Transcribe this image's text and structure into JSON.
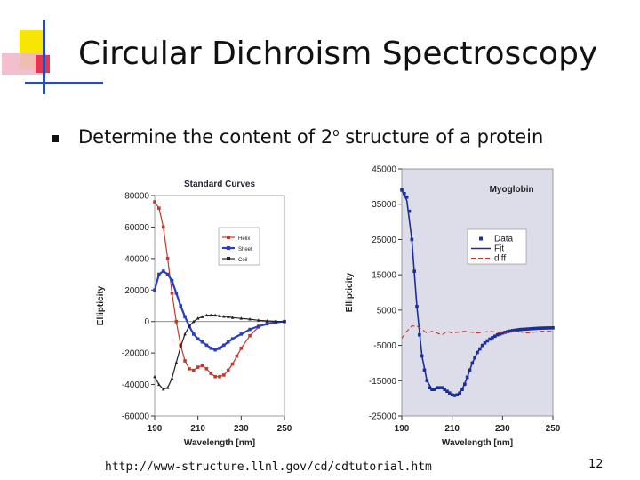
{
  "slide": {
    "title": "Circular Dichroism Spectroscopy",
    "bullet": "Determine the content of 2",
    "bullet_sup": "o",
    "bullet_rest": " structure of a protein",
    "url": "http://www-structure.llnl.gov/cd/cdtutorial.htm",
    "page_number": "12"
  },
  "chart_data": [
    {
      "type": "line",
      "title": "Standard Curves",
      "xlabel": "Wavelength [nm]",
      "ylabel": "Ellipticity",
      "xlim": [
        190,
        250
      ],
      "ylim": [
        -60000,
        80000
      ],
      "xticks": [
        "190",
        "210",
        "230",
        "250"
      ],
      "yticks": [
        "80000",
        "60000",
        "40000",
        "20000",
        "0",
        "-20000",
        "-40000",
        "-60000"
      ],
      "legend_position": "upper-right",
      "colors": {
        "Helix": "#c0392b",
        "Sheet": "#2a3fbf",
        "Coil": "#222222"
      },
      "series": [
        {
          "name": "Helix",
          "x": [
            190,
            192,
            194,
            196,
            198,
            200,
            202,
            204,
            206,
            208,
            210,
            212,
            214,
            216,
            218,
            220,
            222,
            224,
            226,
            228,
            230,
            234,
            238,
            242,
            246,
            250
          ],
          "y": [
            76000,
            72000,
            60000,
            40000,
            18000,
            0,
            -15000,
            -25000,
            -30000,
            -31000,
            -29000,
            -28000,
            -30000,
            -33000,
            -35000,
            -35000,
            -34000,
            -31000,
            -27000,
            -22000,
            -17000,
            -9000,
            -3500,
            -1000,
            -300,
            0
          ]
        },
        {
          "name": "Sheet",
          "x": [
            190,
            192,
            194,
            196,
            198,
            200,
            202,
            204,
            206,
            208,
            210,
            212,
            214,
            216,
            218,
            220,
            222,
            224,
            226,
            230,
            234,
            238,
            242,
            246,
            250
          ],
          "y": [
            20000,
            30000,
            32000,
            30000,
            26000,
            18000,
            10000,
            3000,
            -3000,
            -8000,
            -11000,
            -13000,
            -15000,
            -17000,
            -18000,
            -17000,
            -15000,
            -13000,
            -11000,
            -8000,
            -5000,
            -3000,
            -1500,
            -500,
            0
          ]
        },
        {
          "name": "Coil",
          "x": [
            190,
            192,
            194,
            196,
            198,
            200,
            202,
            204,
            206,
            208,
            210,
            212,
            214,
            216,
            218,
            220,
            222,
            224,
            226,
            230,
            234,
            238,
            242,
            246,
            250
          ],
          "y": [
            -35000,
            -40000,
            -43000,
            -42000,
            -36000,
            -26000,
            -16000,
            -8000,
            -3000,
            0,
            2000,
            3000,
            4000,
            4000,
            4000,
            3500,
            3200,
            3000,
            2500,
            2000,
            1500,
            800,
            400,
            100,
            0
          ]
        }
      ]
    },
    {
      "type": "line",
      "title": "Myoglobin",
      "xlabel": "Wavelength [nm]",
      "ylabel": "Ellipticity",
      "xlim": [
        190,
        250
      ],
      "ylim": [
        -25000,
        45000
      ],
      "xticks": [
        "190",
        "210",
        "230",
        "250"
      ],
      "yticks": [
        "45000",
        "35000",
        "25000",
        "15000",
        "5000",
        "-5000",
        "-15000",
        "-25000"
      ],
      "legend_position": "upper-right",
      "colors": {
        "Data": "#1a2f99",
        "Fit": "#1a2f99",
        "diff": "#c0392b"
      },
      "series": [
        {
          "name": "Data",
          "x": [
            190,
            191,
            192,
            193,
            194,
            195,
            196,
            197,
            198,
            199,
            200,
            201,
            202,
            203,
            204,
            205,
            206,
            207,
            208,
            209,
            210,
            211,
            212,
            213,
            214,
            215,
            216,
            217,
            218,
            219,
            220,
            221,
            222,
            223,
            224,
            225,
            226,
            227,
            228,
            229,
            230,
            231,
            232,
            233,
            234,
            235,
            236,
            237,
            238,
            239,
            240,
            241,
            242,
            243,
            244,
            245,
            246,
            247,
            248,
            249,
            250
          ],
          "y": [
            39000,
            38000,
            37000,
            33000,
            25000,
            16000,
            6000,
            -2000,
            -8000,
            -12000,
            -15000,
            -17000,
            -17500,
            -17500,
            -17000,
            -17000,
            -17000,
            -17500,
            -18000,
            -18500,
            -19000,
            -19200,
            -19000,
            -18500,
            -17500,
            -16000,
            -14000,
            -12000,
            -10000,
            -8500,
            -7000,
            -6000,
            -5000,
            -4300,
            -3700,
            -3200,
            -2800,
            -2400,
            -2000,
            -1800,
            -1500,
            -1300,
            -1100,
            -950,
            -800,
            -700,
            -600,
            -500,
            -450,
            -400,
            -350,
            -300,
            -250,
            -200,
            -150,
            -120,
            -100,
            -80,
            -60,
            -40,
            -20
          ]
        },
        {
          "name": "Fit",
          "x": [
            190,
            192,
            194,
            196,
            198,
            200,
            202,
            204,
            206,
            208,
            210,
            212,
            214,
            216,
            218,
            220,
            222,
            224,
            226,
            230,
            234,
            238,
            242,
            246,
            250
          ],
          "y": [
            39000,
            36000,
            25000,
            6000,
            -8000,
            -15000,
            -17500,
            -17000,
            -17000,
            -18000,
            -19000,
            -19000,
            -17500,
            -14000,
            -10000,
            -7000,
            -5000,
            -3700,
            -2800,
            -1500,
            -800,
            -450,
            -250,
            -100,
            0
          ]
        },
        {
          "name": "diff",
          "x": [
            190,
            192,
            194,
            196,
            198,
            200,
            202,
            204,
            206,
            208,
            210,
            215,
            220,
            225,
            230,
            235,
            240,
            245,
            250
          ],
          "y": [
            -3000,
            -1000,
            500,
            500,
            -500,
            -1500,
            -1000,
            -1500,
            -2000,
            -1000,
            -1500,
            -1000,
            -1500,
            -1000,
            -1500,
            -1000,
            -1500,
            -1000,
            -1000
          ]
        }
      ]
    }
  ]
}
